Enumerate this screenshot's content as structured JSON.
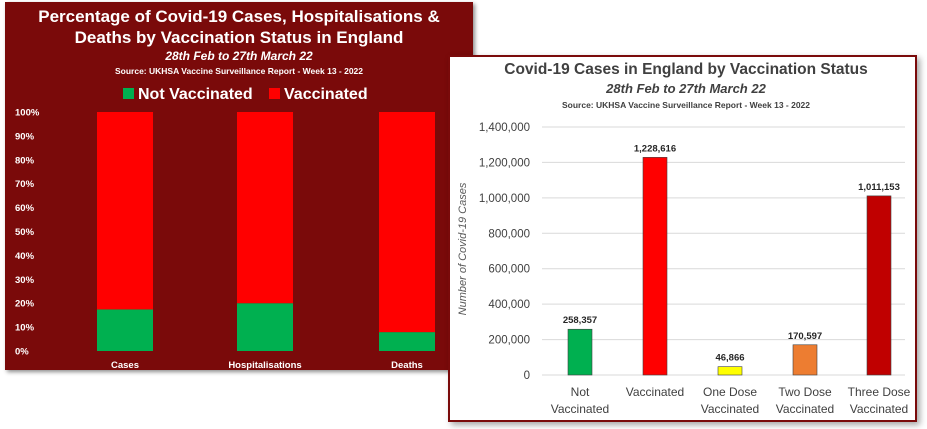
{
  "chart_data": [
    {
      "type": "bar",
      "stacked": true,
      "percent": true,
      "title": "Percentage of Covid-19 Cases, Hospitalisations & Deaths by Vaccination Status in England",
      "subtitle": "28th Feb to 27th March 22",
      "source": "Source: UKHSA Vaccine Surveillance Report - Week 13 - 2022",
      "categories": [
        "Cases",
        "Hospitalisations",
        "Deaths"
      ],
      "series": [
        {
          "name": "Not Vaccinated",
          "color": "#00b050",
          "values": [
            17.4,
            20.0,
            7.9
          ]
        },
        {
          "name": "Vaccinated",
          "color": "#ff0000",
          "values": [
            82.6,
            80.0,
            92.1
          ]
        }
      ],
      "yticks": [
        "100%",
        "90%",
        "80%",
        "70%",
        "60%",
        "50%",
        "40%",
        "30%",
        "20%",
        "10%",
        "0%"
      ],
      "ylim": [
        0,
        100
      ],
      "legend_position": "top",
      "background": "#7a0a0a"
    },
    {
      "type": "bar",
      "title": "Covid-19 Cases in England by Vaccination Status",
      "subtitle": "28th Feb to 27th March 22",
      "source": "Source: UKHSA Vaccine Surveillance Report - Week 13 - 2022",
      "ylabel": "Number of Covid-19 Cases",
      "categories": [
        {
          "line1": "Not",
          "line2": "Vaccinated"
        },
        {
          "line1": "Vaccinated",
          "line2": ""
        },
        {
          "line1": "One Dose",
          "line2": "Vaccinated"
        },
        {
          "line1": "Two Dose",
          "line2": "Vaccinated"
        },
        {
          "line1": "Three Dose",
          "line2": "Vaccinated"
        }
      ],
      "values": [
        258357,
        1228616,
        46866,
        170597,
        1011153
      ],
      "labels": [
        "258,357",
        "1,228,616",
        "46,866",
        "170,597",
        "1,011,153"
      ],
      "colors": [
        "#00b050",
        "#ff0000",
        "#ffff00",
        "#ed7d31",
        "#c00000"
      ],
      "yticks": [
        "1,400,000",
        "1,200,000",
        "1,000,000",
        "800,000",
        "600,000",
        "400,000",
        "200,000",
        "0"
      ],
      "ylim": [
        0,
        1400000
      ]
    }
  ]
}
